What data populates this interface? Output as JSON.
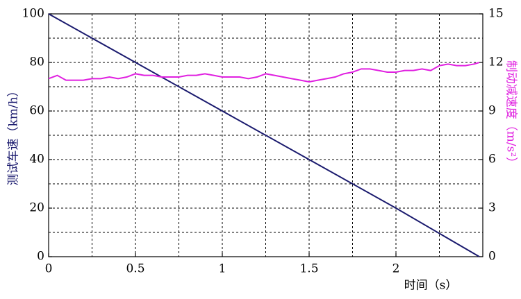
{
  "chart_data": {
    "type": "line",
    "xlabel": "时间（s）",
    "ylabel": "测试车速（km/h）",
    "y2label": "制动减速度（m/s²）",
    "xlim": [
      0,
      2.5
    ],
    "xticks": [
      0,
      0.5,
      1,
      1.5,
      2
    ],
    "ylim": [
      0,
      100
    ],
    "yticks": [
      0,
      20,
      40,
      60,
      80,
      100
    ],
    "y2lim": [
      0,
      15
    ],
    "y2ticks": [
      0,
      3,
      6,
      9,
      12,
      15
    ],
    "grid": true,
    "xgrid": [
      0.25,
      0.5,
      0.75,
      1,
      1.25,
      1.5,
      1.75,
      2,
      2.25
    ],
    "ygrid": [
      10,
      20,
      30,
      40,
      50,
      60,
      70,
      80,
      90
    ],
    "series": [
      {
        "name": "测试车速",
        "color": "#1a1a6e",
        "axis": "y",
        "x": [
          0,
          0.5,
          1,
          1.5,
          2,
          2.48
        ],
        "values": [
          100,
          80,
          60,
          40,
          20,
          0
        ]
      },
      {
        "name": "制动减速度",
        "color": "#e020e0",
        "axis": "y2",
        "x": [
          0,
          0.05,
          0.1,
          0.15,
          0.2,
          0.25,
          0.3,
          0.35,
          0.4,
          0.45,
          0.5,
          0.55,
          0.6,
          0.65,
          0.7,
          0.75,
          0.8,
          0.85,
          0.9,
          0.95,
          1,
          1.05,
          1.1,
          1.15,
          1.2,
          1.25,
          1.3,
          1.35,
          1.4,
          1.45,
          1.5,
          1.55,
          1.6,
          1.65,
          1.7,
          1.75,
          1.8,
          1.85,
          1.9,
          1.95,
          2,
          2.05,
          2.1,
          2.15,
          2.2,
          2.25,
          2.3,
          2.35,
          2.4,
          2.45,
          2.48
        ],
        "values": [
          11.0,
          11.2,
          10.9,
          10.9,
          10.9,
          11.0,
          11.0,
          11.1,
          11.0,
          11.1,
          11.3,
          11.2,
          11.2,
          11.1,
          11.1,
          11.1,
          11.2,
          11.2,
          11.3,
          11.2,
          11.1,
          11.1,
          11.1,
          11.0,
          11.1,
          11.3,
          11.2,
          11.1,
          11.0,
          10.9,
          10.8,
          10.9,
          11.0,
          11.1,
          11.3,
          11.4,
          11.6,
          11.6,
          11.5,
          11.4,
          11.4,
          11.5,
          11.5,
          11.6,
          11.5,
          11.8,
          11.9,
          11.8,
          11.8,
          11.9,
          12.0
        ]
      }
    ]
  }
}
